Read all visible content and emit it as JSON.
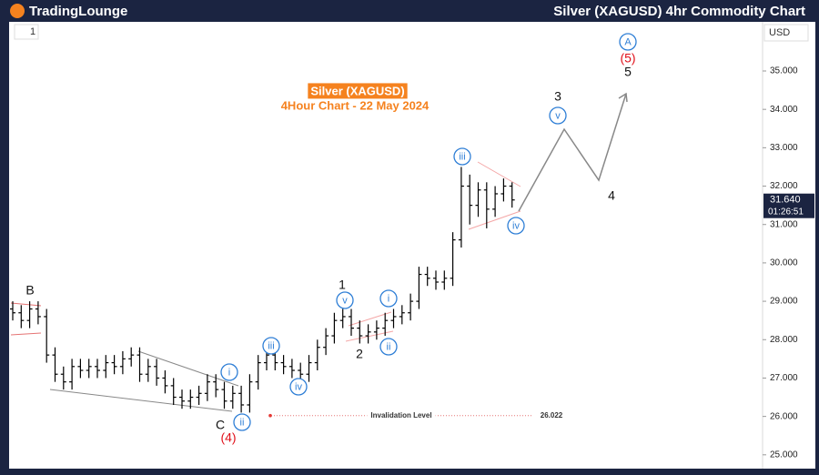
{
  "header": {
    "logo": "TradingLounge",
    "title": "Silver (XAGUSD) 4hr Commodity Chart"
  },
  "toolbar": {
    "interval": "1",
    "currency": "USD"
  },
  "chart_data": {
    "type": "ohlc",
    "title": "Silver (XAGUSD)",
    "subtitle": "4Hour Chart - 22 May 2024",
    "color": "#000000",
    "open": [
      28.8,
      28.7,
      28.5,
      28.8,
      28.6,
      27.6,
      27.1,
      26.9,
      27.3,
      27.2,
      27.3,
      27.2,
      27.4,
      27.3,
      27.5,
      27.6,
      27.1,
      27.3,
      27.0,
      26.8,
      26.5,
      26.4,
      26.5,
      26.6,
      26.9,
      26.7,
      26.4,
      26.6,
      26.3,
      26.9,
      27.4,
      27.6,
      27.4,
      27.3,
      27.2,
      27.1,
      27.4,
      27.8,
      28.1,
      28.5,
      28.6,
      28.3,
      28.1,
      28.2,
      28.3,
      28.5,
      28.6,
      28.7,
      29.0,
      29.7,
      29.6,
      29.5,
      29.6,
      30.6,
      32.0,
      31.5,
      31.9,
      31.4,
      31.8,
      32.0
    ],
    "high": [
      29.0,
      28.9,
      29.0,
      29.0,
      28.8,
      27.8,
      27.3,
      27.5,
      27.5,
      27.5,
      27.5,
      27.6,
      27.6,
      27.7,
      27.8,
      27.8,
      27.5,
      27.5,
      27.2,
      27.0,
      26.7,
      26.7,
      26.8,
      27.1,
      27.1,
      26.9,
      26.8,
      26.8,
      27.1,
      27.6,
      27.8,
      27.8,
      27.6,
      27.5,
      27.4,
      27.6,
      28.0,
      28.3,
      28.7,
      28.8,
      28.8,
      28.5,
      28.4,
      28.5,
      28.7,
      28.8,
      28.9,
      29.2,
      29.9,
      29.9,
      29.8,
      29.8,
      30.8,
      32.5,
      32.3,
      32.1,
      32.1,
      32.0,
      32.2,
      32.1
    ],
    "low": [
      28.5,
      28.3,
      28.3,
      28.4,
      27.4,
      26.9,
      26.7,
      26.7,
      27.0,
      27.0,
      27.0,
      27.0,
      27.1,
      27.1,
      27.3,
      26.9,
      26.9,
      26.8,
      26.6,
      26.3,
      26.2,
      26.2,
      26.3,
      26.4,
      26.5,
      26.2,
      26.2,
      26.1,
      26.1,
      26.7,
      27.2,
      27.2,
      27.1,
      27.0,
      26.9,
      26.9,
      27.2,
      27.6,
      27.9,
      28.3,
      28.1,
      27.9,
      27.9,
      28.0,
      28.1,
      28.3,
      28.4,
      28.5,
      28.8,
      29.4,
      29.3,
      29.3,
      29.4,
      30.4,
      31.0,
      31.2,
      30.9,
      31.2,
      31.6,
      31.44
    ],
    "close": [
      28.7,
      28.5,
      28.8,
      28.6,
      27.6,
      27.1,
      26.9,
      27.3,
      27.2,
      27.3,
      27.2,
      27.4,
      27.3,
      27.5,
      27.6,
      27.1,
      27.3,
      27.0,
      26.8,
      26.5,
      26.4,
      26.5,
      26.6,
      26.9,
      26.7,
      26.4,
      26.6,
      26.3,
      26.9,
      27.4,
      27.6,
      27.4,
      27.3,
      27.2,
      27.1,
      27.4,
      27.8,
      28.1,
      28.5,
      28.6,
      28.3,
      28.1,
      28.2,
      28.3,
      28.5,
      28.6,
      28.7,
      29.0,
      29.7,
      29.6,
      29.5,
      29.6,
      30.6,
      32.0,
      31.5,
      31.9,
      31.4,
      31.8,
      32.0,
      31.64
    ],
    "ylim": [
      24.64,
      36.28
    ],
    "yticks": [
      {
        "value": 25,
        "label": "25.000"
      },
      {
        "value": 26,
        "label": "26.000"
      },
      {
        "value": 27,
        "label": "27.000"
      },
      {
        "value": 28,
        "label": "28.000"
      },
      {
        "value": 29,
        "label": "29.000"
      },
      {
        "value": 30,
        "label": "30.000"
      },
      {
        "value": 31,
        "label": "31.000"
      },
      {
        "value": 32,
        "label": "32.000"
      },
      {
        "value": 33,
        "label": "33.000"
      },
      {
        "value": 34,
        "label": "34.000"
      },
      {
        "value": 35,
        "label": "35.000"
      }
    ],
    "last_price": {
      "value": 31.64,
      "label": "31.640",
      "countdown": "01:26:51"
    },
    "invalidation": {
      "text": "Invalidation Level",
      "value": 26.022,
      "label": "26.022"
    },
    "annotations": [
      {
        "text": "B",
        "style": "black"
      },
      {
        "text": "C",
        "style": "black"
      },
      {
        "text": "(4)",
        "style": "red"
      },
      {
        "text": "i",
        "style": "blue"
      },
      {
        "text": "ii",
        "style": "blue"
      },
      {
        "text": "iii",
        "style": "blue"
      },
      {
        "text": "iv",
        "style": "blue"
      },
      {
        "text": "v",
        "style": "blue"
      },
      {
        "text": "1",
        "style": "black"
      },
      {
        "text": "2",
        "style": "black"
      },
      {
        "text": "i",
        "style": "blue"
      },
      {
        "text": "ii",
        "style": "blue"
      },
      {
        "text": "iii",
        "style": "blue"
      },
      {
        "text": "iv",
        "style": "blue"
      },
      {
        "text": "v",
        "style": "blue"
      },
      {
        "text": "3",
        "style": "black"
      },
      {
        "text": "4",
        "style": "black"
      },
      {
        "text": "A",
        "style": "blue"
      },
      {
        "text": "(5)",
        "style": "red"
      },
      {
        "text": "5",
        "style": "black"
      }
    ]
  }
}
